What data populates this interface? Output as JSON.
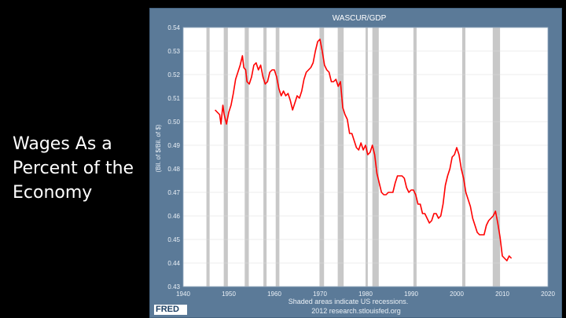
{
  "slide": {
    "title": "Wages As a\nPercent of the\nEconomy"
  },
  "fred": {
    "logo_text": "FRED"
  },
  "chart_data": {
    "type": "line",
    "title": "WASCUR/GDP",
    "ylabel": "(Bil. of $/Bil. of $)",
    "xlabel": "",
    "xlim": [
      1940,
      2020
    ],
    "ylim": [
      0.43,
      0.54
    ],
    "x_ticks": [
      1940,
      1950,
      1960,
      1970,
      1980,
      1990,
      2000,
      2010,
      2020
    ],
    "y_ticks": [
      0.43,
      0.44,
      0.45,
      0.46,
      0.47,
      0.48,
      0.49,
      0.5,
      0.51,
      0.52,
      0.53,
      0.54
    ],
    "y_tick_labels": [
      "0.43",
      "0.44",
      "0.45",
      "0.46",
      "0.47",
      "0.48",
      "0.49",
      "0.50",
      "0.51",
      "0.52",
      "0.53",
      "0.54"
    ],
    "recessions": [
      [
        1945.1,
        1945.8
      ],
      [
        1948.9,
        1949.8
      ],
      [
        1953.5,
        1954.4
      ],
      [
        1957.6,
        1958.3
      ],
      [
        1960.3,
        1961.1
      ],
      [
        1969.9,
        1970.9
      ],
      [
        1973.9,
        1975.2
      ],
      [
        1980.0,
        1980.5
      ],
      [
        1981.5,
        1982.9
      ],
      [
        1990.5,
        1991.2
      ],
      [
        2001.2,
        2001.9
      ],
      [
        2007.9,
        2009.5
      ]
    ],
    "line_color": "#ff0000",
    "recession_color": "#c8c8c8",
    "plot_bg": "#ffffff",
    "grid": true,
    "series": [
      {
        "values": [
          [
            1947.0,
            0.505
          ],
          [
            1947.5,
            0.504
          ],
          [
            1948.0,
            0.503
          ],
          [
            1948.3,
            0.499
          ],
          [
            1948.7,
            0.507
          ],
          [
            1949.0,
            0.503
          ],
          [
            1949.5,
            0.499
          ],
          [
            1950.0,
            0.504
          ],
          [
            1950.5,
            0.507
          ],
          [
            1951.0,
            0.512
          ],
          [
            1951.5,
            0.518
          ],
          [
            1952.0,
            0.521
          ],
          [
            1952.5,
            0.524
          ],
          [
            1953.0,
            0.528
          ],
          [
            1953.3,
            0.523
          ],
          [
            1953.7,
            0.522
          ],
          [
            1954.0,
            0.517
          ],
          [
            1954.5,
            0.516
          ],
          [
            1955.0,
            0.519
          ],
          [
            1955.5,
            0.524
          ],
          [
            1956.0,
            0.525
          ],
          [
            1956.5,
            0.522
          ],
          [
            1957.0,
            0.524
          ],
          [
            1957.5,
            0.519
          ],
          [
            1958.0,
            0.516
          ],
          [
            1958.5,
            0.517
          ],
          [
            1959.0,
            0.521
          ],
          [
            1959.5,
            0.522
          ],
          [
            1960.0,
            0.522
          ],
          [
            1960.5,
            0.519
          ],
          [
            1961.0,
            0.514
          ],
          [
            1961.5,
            0.511
          ],
          [
            1962.0,
            0.513
          ],
          [
            1962.5,
            0.511
          ],
          [
            1963.0,
            0.512
          ],
          [
            1963.5,
            0.509
          ],
          [
            1964.0,
            0.505
          ],
          [
            1964.5,
            0.508
          ],
          [
            1965.0,
            0.511
          ],
          [
            1965.5,
            0.51
          ],
          [
            1966.0,
            0.513
          ],
          [
            1966.5,
            0.518
          ],
          [
            1967.0,
            0.521
          ],
          [
            1967.5,
            0.522
          ],
          [
            1968.0,
            0.523
          ],
          [
            1968.5,
            0.525
          ],
          [
            1969.0,
            0.53
          ],
          [
            1969.5,
            0.534
          ],
          [
            1970.0,
            0.535
          ],
          [
            1970.5,
            0.53
          ],
          [
            1971.0,
            0.524
          ],
          [
            1971.5,
            0.522
          ],
          [
            1972.0,
            0.521
          ],
          [
            1972.5,
            0.517
          ],
          [
            1973.0,
            0.517
          ],
          [
            1973.5,
            0.518
          ],
          [
            1974.0,
            0.515
          ],
          [
            1974.5,
            0.517
          ],
          [
            1975.0,
            0.506
          ],
          [
            1975.5,
            0.503
          ],
          [
            1976.0,
            0.501
          ],
          [
            1976.5,
            0.495
          ],
          [
            1977.0,
            0.495
          ],
          [
            1977.5,
            0.492
          ],
          [
            1978.0,
            0.489
          ],
          [
            1978.5,
            0.488
          ],
          [
            1979.0,
            0.491
          ],
          [
            1979.5,
            0.488
          ],
          [
            1980.0,
            0.49
          ],
          [
            1980.5,
            0.486
          ],
          [
            1981.0,
            0.487
          ],
          [
            1981.5,
            0.49
          ],
          [
            1982.0,
            0.486
          ],
          [
            1982.5,
            0.478
          ],
          [
            1983.0,
            0.474
          ],
          [
            1983.5,
            0.47
          ],
          [
            1984.0,
            0.469
          ],
          [
            1984.5,
            0.469
          ],
          [
            1985.0,
            0.47
          ],
          [
            1985.5,
            0.47
          ],
          [
            1986.0,
            0.47
          ],
          [
            1986.5,
            0.474
          ],
          [
            1987.0,
            0.477
          ],
          [
            1987.5,
            0.477
          ],
          [
            1988.0,
            0.477
          ],
          [
            1988.5,
            0.476
          ],
          [
            1989.0,
            0.472
          ],
          [
            1989.5,
            0.47
          ],
          [
            1990.0,
            0.471
          ],
          [
            1990.5,
            0.471
          ],
          [
            1991.0,
            0.469
          ],
          [
            1991.5,
            0.465
          ],
          [
            1992.0,
            0.465
          ],
          [
            1992.5,
            0.461
          ],
          [
            1993.0,
            0.461
          ],
          [
            1993.5,
            0.459
          ],
          [
            1994.0,
            0.457
          ],
          [
            1994.5,
            0.458
          ],
          [
            1995.0,
            0.461
          ],
          [
            1995.5,
            0.461
          ],
          [
            1996.0,
            0.459
          ],
          [
            1996.5,
            0.46
          ],
          [
            1997.0,
            0.465
          ],
          [
            1997.5,
            0.473
          ],
          [
            1998.0,
            0.477
          ],
          [
            1998.5,
            0.48
          ],
          [
            1999.0,
            0.485
          ],
          [
            1999.5,
            0.486
          ],
          [
            2000.0,
            0.489
          ],
          [
            2000.5,
            0.486
          ],
          [
            2001.0,
            0.48
          ],
          [
            2001.5,
            0.476
          ],
          [
            2002.0,
            0.47
          ],
          [
            2002.5,
            0.467
          ],
          [
            2003.0,
            0.464
          ],
          [
            2003.5,
            0.459
          ],
          [
            2004.0,
            0.456
          ],
          [
            2004.5,
            0.453
          ],
          [
            2005.0,
            0.452
          ],
          [
            2005.5,
            0.452
          ],
          [
            2006.0,
            0.452
          ],
          [
            2006.5,
            0.456
          ],
          [
            2007.0,
            0.458
          ],
          [
            2007.5,
            0.459
          ],
          [
            2008.0,
            0.46
          ],
          [
            2008.5,
            0.462
          ],
          [
            2009.0,
            0.457
          ],
          [
            2009.5,
            0.451
          ],
          [
            2010.0,
            0.443
          ],
          [
            2010.5,
            0.442
          ],
          [
            2011.0,
            0.441
          ],
          [
            2011.5,
            0.443
          ],
          [
            2012.0,
            0.442
          ]
        ]
      }
    ],
    "source_note": "Shaded areas indicate US recessions.",
    "source_url": "2012 research.stlouisfed.org"
  }
}
